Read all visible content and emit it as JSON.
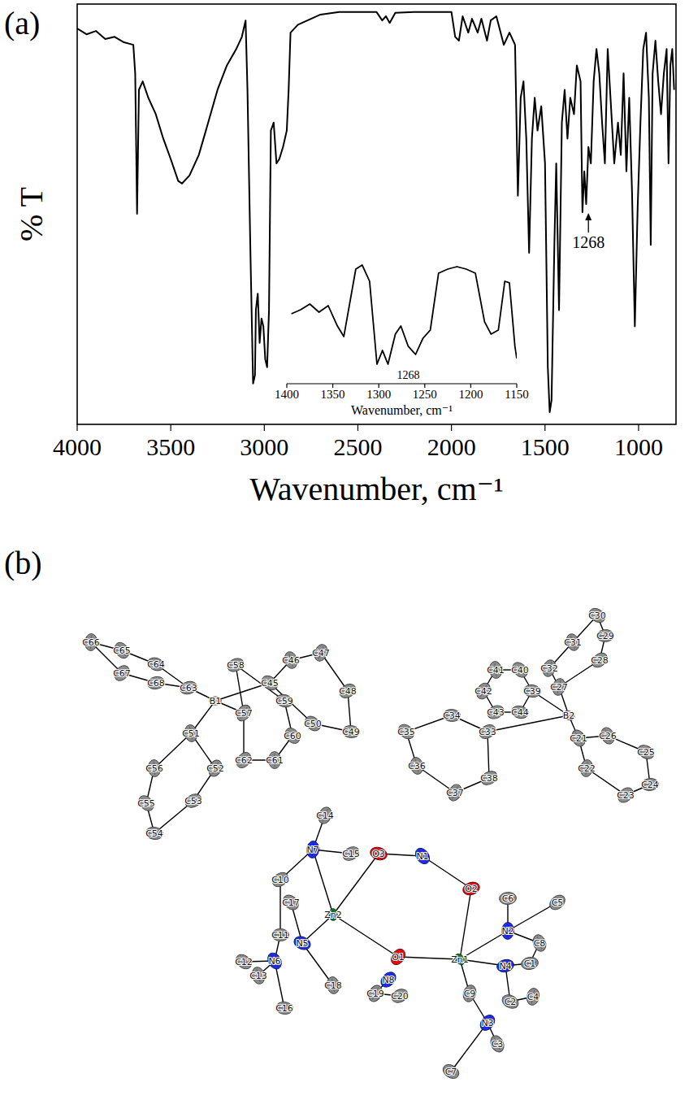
{
  "panels": [
    "(a)",
    "(b)"
  ],
  "chart_data": [
    {
      "type": "line",
      "x_label": "Wavenumber, cm⁻¹",
      "y_label": "% T",
      "color": "#000000",
      "xlim": [
        4000,
        800
      ],
      "ylim": [
        0,
        100
      ],
      "xticks": [
        4000,
        3500,
        3000,
        2500,
        2000,
        1500,
        1000
      ],
      "tick_labels": "x",
      "x": [
        4000,
        3950,
        3900,
        3850,
        3800,
        3750,
        3700,
        3690,
        3680,
        3670,
        3650,
        3620,
        3580,
        3540,
        3500,
        3460,
        3440,
        3400,
        3350,
        3300,
        3250,
        3200,
        3150,
        3120,
        3100,
        3090,
        3075,
        3060,
        3050,
        3045,
        3035,
        3025,
        3015,
        3005,
        2995,
        2985,
        2975,
        2965,
        2950,
        2935,
        2920,
        2900,
        2880,
        2870,
        2860,
        2820,
        2700,
        2600,
        2500,
        2400,
        2370,
        2350,
        2330,
        2300,
        2200,
        2100,
        2000,
        1980,
        1960,
        1940,
        1910,
        1890,
        1860,
        1840,
        1810,
        1790,
        1760,
        1720,
        1690,
        1660,
        1645,
        1630,
        1615,
        1600,
        1585,
        1570,
        1555,
        1540,
        1520,
        1500,
        1485,
        1475,
        1465,
        1450,
        1440,
        1425,
        1410,
        1395,
        1380,
        1365,
        1345,
        1330,
        1310,
        1300,
        1290,
        1280,
        1268,
        1255,
        1240,
        1225,
        1210,
        1195,
        1180,
        1165,
        1150,
        1130,
        1110,
        1095,
        1080,
        1065,
        1050,
        1035,
        1020,
        1005,
        990,
        975,
        960,
        945,
        935,
        925,
        910,
        895,
        880,
        865,
        850,
        840,
        830,
        820,
        810
      ],
      "values": [
        94.2,
        92.8,
        93.6,
        91.7,
        92.2,
        90.9,
        90.3,
        83.5,
        50.1,
        79.6,
        81.6,
        77.7,
        73.8,
        68.0,
        63.1,
        57.9,
        57.3,
        59.2,
        64.1,
        71.8,
        79.6,
        85.4,
        89.3,
        92.2,
        96.1,
        79.6,
        42.7,
        9.7,
        11.7,
        27.2,
        31.1,
        19.4,
        25.2,
        23.3,
        15.5,
        13.6,
        27.2,
        69.9,
        71.8,
        62.1,
        63.1,
        66.0,
        69.9,
        79.6,
        93.2,
        95.1,
        97.5,
        98.1,
        98.1,
        98.1,
        96.1,
        97.1,
        95.5,
        97.9,
        98.1,
        98.1,
        98.1,
        92.2,
        91.3,
        97.1,
        93.2,
        96.5,
        93.2,
        96.5,
        91.3,
        96.1,
        97.1,
        90.3,
        93.2,
        90.3,
        54.4,
        77.7,
        81.6,
        68.0,
        40.8,
        68.0,
        77.7,
        69.9,
        75.7,
        62.1,
        13.6,
        2.9,
        5.8,
        42.7,
        62.1,
        27.2,
        71.8,
        79.6,
        68.0,
        77.7,
        73.8,
        85.4,
        81.6,
        50.5,
        60.2,
        52.4,
        66.0,
        62.1,
        81.6,
        89.3,
        83.5,
        71.8,
        62.1,
        89.3,
        77.7,
        62.1,
        71.8,
        64.1,
        83.5,
        60.2,
        77.7,
        55.3,
        23.3,
        51.5,
        71.8,
        89.3,
        93.2,
        77.7,
        42.7,
        83.5,
        91.3,
        81.6,
        73.8,
        83.5,
        89.3,
        62.1,
        85.4,
        89.3,
        79.6
      ],
      "annotations": [
        {
          "text": "1268",
          "x": 1268
        }
      ]
    },
    {
      "type": "line",
      "x_label": "Wavenumber, cm⁻¹",
      "color": "#000000",
      "xlim": [
        1400,
        1150
      ],
      "ylim": [
        0,
        100
      ],
      "xticks": [
        1400,
        1350,
        1300,
        1250,
        1200,
        1150
      ],
      "tick_labels": "x",
      "x": [
        1395,
        1385,
        1375,
        1365,
        1355,
        1345,
        1338,
        1325,
        1318,
        1310,
        1302,
        1296,
        1290,
        1282,
        1276,
        1268,
        1260,
        1252,
        1244,
        1235,
        1225,
        1215,
        1205,
        1195,
        1185,
        1178,
        1170,
        1163,
        1158,
        1152,
        1150
      ],
      "values": [
        53.3,
        56.7,
        61.3,
        54.7,
        60.0,
        43.3,
        34.7,
        90.0,
        93.3,
        80.0,
        12.0,
        23.3,
        12.0,
        36.7,
        43.3,
        26.7,
        20.0,
        33.3,
        40.0,
        86.7,
        90.0,
        92.0,
        90.0,
        86.7,
        46.7,
        36.7,
        40.0,
        80.0,
        78.7,
        26.7,
        16.7
      ],
      "annotations": [
        {
          "text": "1268",
          "x": 1268
        }
      ]
    }
  ],
  "structure": {
    "element_colors": {
      "C": "#8c8c8c",
      "N": "#1f2ee6",
      "O": "#e01010",
      "Zn": "#137a2e",
      "B": "#f2b8c0"
    },
    "atoms": [
      "B1",
      "C45",
      "C46",
      "C47",
      "C48",
      "C49",
      "C50",
      "C51",
      "C52",
      "C53",
      "C54",
      "C55",
      "C56",
      "C57",
      "C58",
      "C59",
      "C60",
      "C61",
      "C62",
      "C63",
      "C64",
      "C65",
      "C66",
      "C67",
      "C68",
      "B2",
      "C21",
      "C22",
      "C23",
      "C24",
      "C25",
      "C26",
      "C27",
      "C28",
      "C29",
      "C30",
      "C31",
      "C32",
      "C33",
      "C34",
      "C35",
      "C36",
      "C37",
      "C38",
      "C39",
      "C40",
      "C41",
      "C42",
      "C43",
      "C44",
      "Zn1",
      "Zn2",
      "O1",
      "O2",
      "O3",
      "N1",
      "N2",
      "N3",
      "N4",
      "N5",
      "N6",
      "N7",
      "N8",
      "C1",
      "C2",
      "C3",
      "C4",
      "C5",
      "C6",
      "C7",
      "C8",
      "C9",
      "C10",
      "C11",
      "C12",
      "C13",
      "C14",
      "C15",
      "C16",
      "C17",
      "C18",
      "C19",
      "C20"
    ],
    "bonds": [
      [
        "B1",
        "C63"
      ],
      [
        "B1",
        "C57"
      ],
      [
        "B1",
        "C51"
      ],
      [
        "B1",
        "C45"
      ],
      [
        "C63",
        "C64"
      ],
      [
        "C64",
        "C65"
      ],
      [
        "C65",
        "C66"
      ],
      [
        "C66",
        "C67"
      ],
      [
        "C67",
        "C68"
      ],
      [
        "C68",
        "C63"
      ],
      [
        "C45",
        "C46"
      ],
      [
        "C46",
        "C47"
      ],
      [
        "C47",
        "C48"
      ],
      [
        "C48",
        "C49"
      ],
      [
        "C49",
        "C50"
      ],
      [
        "C50",
        "C45"
      ],
      [
        "C57",
        "C58"
      ],
      [
        "C58",
        "C59"
      ],
      [
        "C59",
        "C60"
      ],
      [
        "C60",
        "C61"
      ],
      [
        "C61",
        "C62"
      ],
      [
        "C62",
        "C57"
      ],
      [
        "C51",
        "C52"
      ],
      [
        "C52",
        "C53"
      ],
      [
        "C53",
        "C54"
      ],
      [
        "C54",
        "C55"
      ],
      [
        "C55",
        "C56"
      ],
      [
        "C56",
        "C51"
      ],
      [
        "B2",
        "C27"
      ],
      [
        "B2",
        "C33"
      ],
      [
        "B2",
        "C21"
      ],
      [
        "B2",
        "C39"
      ],
      [
        "C27",
        "C28"
      ],
      [
        "C28",
        "C29"
      ],
      [
        "C29",
        "C30"
      ],
      [
        "C30",
        "C31"
      ],
      [
        "C31",
        "C32"
      ],
      [
        "C32",
        "C27"
      ],
      [
        "C33",
        "C34"
      ],
      [
        "C34",
        "C35"
      ],
      [
        "C35",
        "C36"
      ],
      [
        "C36",
        "C37"
      ],
      [
        "C37",
        "C38"
      ],
      [
        "C38",
        "C33"
      ],
      [
        "C21",
        "C22"
      ],
      [
        "C22",
        "C23"
      ],
      [
        "C23",
        "C24"
      ],
      [
        "C24",
        "C25"
      ],
      [
        "C25",
        "C26"
      ],
      [
        "C26",
        "C21"
      ],
      [
        "C39",
        "C40"
      ],
      [
        "C40",
        "C41"
      ],
      [
        "C41",
        "C42"
      ],
      [
        "C42",
        "C43"
      ],
      [
        "C43",
        "C44"
      ],
      [
        "C44",
        "C39"
      ],
      [
        "Zn2",
        "N7"
      ],
      [
        "Zn2",
        "O3"
      ],
      [
        "Zn2",
        "N5"
      ],
      [
        "Zn2",
        "O1"
      ],
      [
        "O3",
        "N1"
      ],
      [
        "N1",
        "O2"
      ],
      [
        "O2",
        "Zn1"
      ],
      [
        "Zn1",
        "O1"
      ],
      [
        "Zn1",
        "N2"
      ],
      [
        "Zn1",
        "N4"
      ],
      [
        "Zn1",
        "C9"
      ],
      [
        "C9",
        "N3"
      ],
      [
        "N3",
        "C3"
      ],
      [
        "N3",
        "C7"
      ],
      [
        "N2",
        "C5"
      ],
      [
        "N2",
        "C6"
      ],
      [
        "N2",
        "C8"
      ],
      [
        "C8",
        "C1"
      ],
      [
        "N4",
        "C1"
      ],
      [
        "N4",
        "C2"
      ],
      [
        "C2",
        "C4"
      ],
      [
        "N7",
        "C14"
      ],
      [
        "N7",
        "C15"
      ],
      [
        "N7",
        "C10"
      ],
      [
        "C10",
        "C11"
      ],
      [
        "C11",
        "N6"
      ],
      [
        "N5",
        "C17"
      ],
      [
        "N5",
        "C18"
      ],
      [
        "N6",
        "C12"
      ],
      [
        "N6",
        "C13"
      ],
      [
        "N6",
        "C16"
      ],
      [
        "N8",
        "C19"
      ],
      [
        "C19",
        "C20"
      ]
    ]
  }
}
